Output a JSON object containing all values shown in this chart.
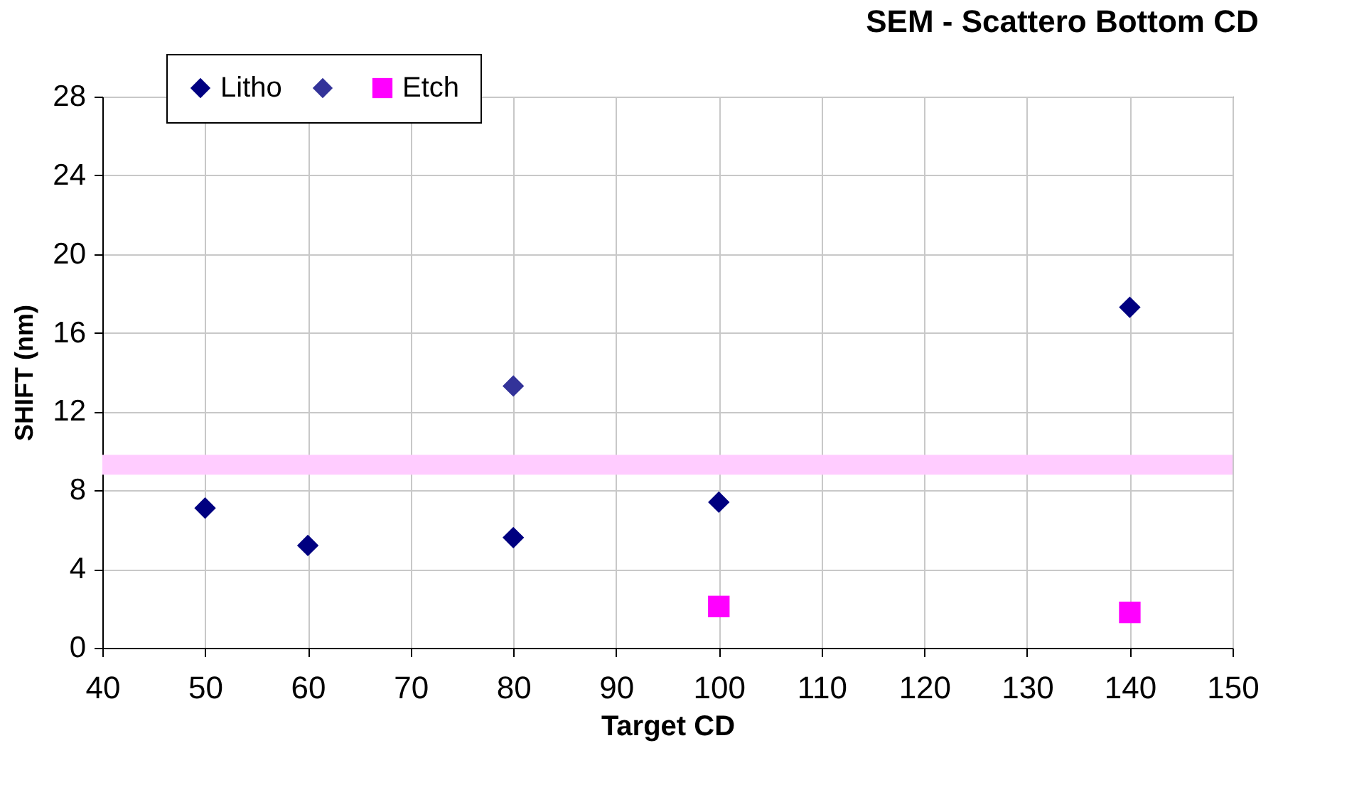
{
  "chart_data": {
    "type": "scatter",
    "title": "SEM - Scattero Bottom CD",
    "xlabel": "Target CD",
    "ylabel": "SHIFT (nm)",
    "series": [
      {
        "name": "Litho",
        "color": "#000080",
        "marker": "diamond",
        "x": [
          50,
          60,
          80,
          100,
          140
        ],
        "values": [
          7.1,
          5.2,
          5.6,
          7.4,
          17.3
        ]
      },
      {
        "color": "#333399",
        "marker": "diamond",
        "x": [
          80
        ],
        "values": [
          13.3
        ]
      },
      {
        "name": "Etch",
        "color": "#ff00ff",
        "marker": "square",
        "x": [
          100,
          140
        ],
        "values": [
          2.1,
          1.8
        ]
      }
    ],
    "xlim": [
      40,
      150
    ],
    "xticks": [
      40,
      50,
      60,
      70,
      80,
      90,
      100,
      110,
      120,
      130,
      140,
      150
    ],
    "ylim": [
      0,
      28
    ],
    "yticks": [
      0,
      4,
      8,
      12,
      16,
      20,
      24,
      28
    ],
    "ref_lines": [
      {
        "axis": "y",
        "value": 9.3,
        "color": "#ffccff"
      }
    ],
    "grid": true,
    "legend": "top left"
  }
}
